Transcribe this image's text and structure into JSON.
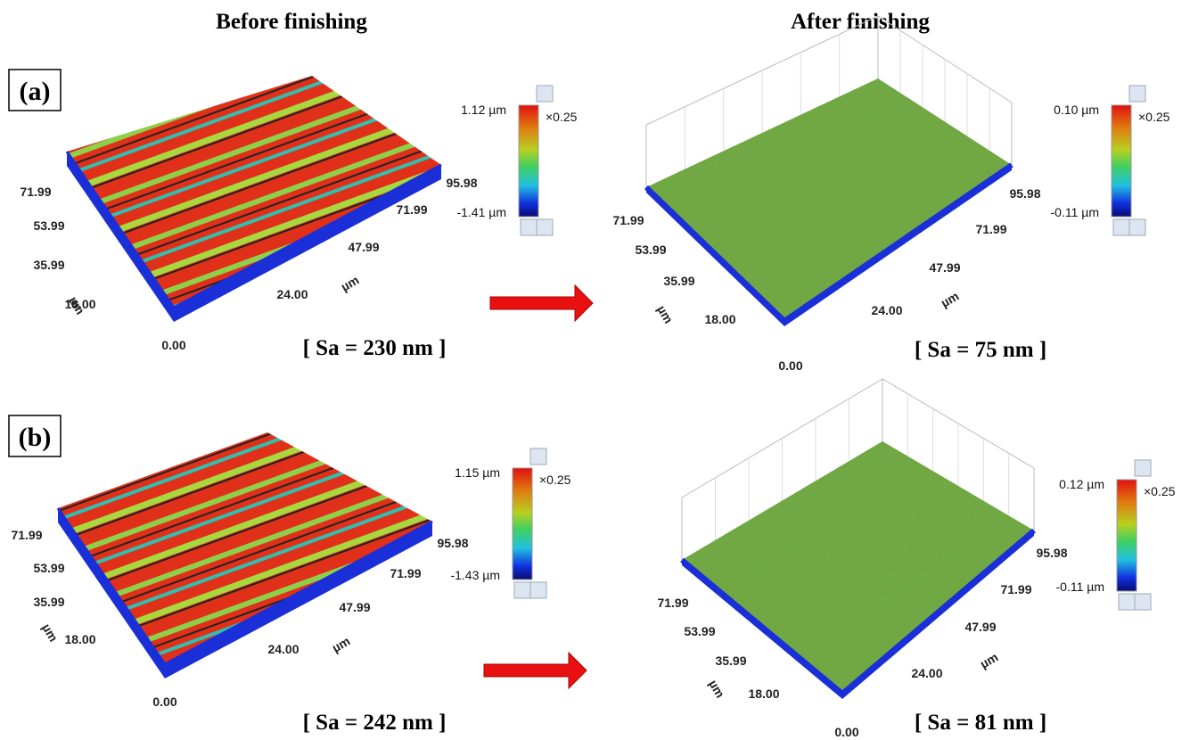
{
  "headers": [
    "Before finishing",
    "After finishing"
  ],
  "rows": [
    {
      "label": "(a)",
      "panels": [
        {
          "y_ticks": [
            "71.99",
            "53.99",
            "35.99",
            "18.00",
            "0.00"
          ],
          "x_ticks": [
            "24.00",
            "47.99",
            "71.99",
            "95.98"
          ],
          "unit_y": "µm",
          "unit_x": "µm",
          "colorbar": {
            "max": "1.12 µm",
            "min": "-1.41 µm",
            "scale": "×0.25"
          },
          "caption": "[ Sa = 230 nm ]"
        },
        {
          "y_ticks": [
            "71.99",
            "53.99",
            "35.99",
            "18.00",
            "0.00"
          ],
          "x_ticks": [
            "24.00",
            "47.99",
            "71.99",
            "95.98"
          ],
          "unit_y": "µm",
          "unit_x": "µm",
          "colorbar": {
            "max": "0.10 µm",
            "min": "-0.11 µm",
            "scale": "×0.25"
          },
          "caption": "[ Sa = 75 nm ]"
        }
      ]
    },
    {
      "label": "(b)",
      "panels": [
        {
          "y_ticks": [
            "71.99",
            "53.99",
            "35.99",
            "18.00",
            "0.00"
          ],
          "x_ticks": [
            "24.00",
            "47.99",
            "71.99",
            "95.98"
          ],
          "unit_y": "µm",
          "unit_x": "µm",
          "colorbar": {
            "max": "1.15 µm",
            "min": "-1.43 µm",
            "scale": "×0.25"
          },
          "caption": "[ Sa = 242 nm ]"
        },
        {
          "y_ticks": [
            "71.99",
            "53.99",
            "35.99",
            "18.00",
            "0.00"
          ],
          "x_ticks": [
            "24.00",
            "47.99",
            "71.99",
            "95.98"
          ],
          "unit_y": "µm",
          "unit_x": "µm",
          "colorbar": {
            "max": "0.12 µm",
            "min": "-0.11 µm",
            "scale": "×0.25"
          },
          "caption": "[ Sa = 81 nm ]"
        }
      ]
    }
  ]
}
